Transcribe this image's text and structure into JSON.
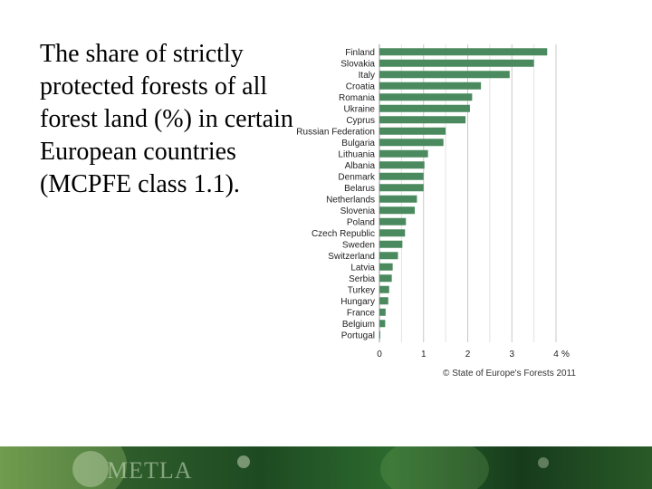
{
  "slide": {
    "text": "The share of strictly protected forests of all forest land (%) in certain European countries (MCPFE class 1.1)."
  },
  "chart_data": {
    "type": "bar",
    "orientation": "horizontal",
    "categories": [
      "Finland",
      "Slovakia",
      "Italy",
      "Croatia",
      "Romania",
      "Ukraine",
      "Cyprus",
      "Russian Federation",
      "Bulgaria",
      "Lithuania",
      "Albania",
      "Denmark",
      "Belarus",
      "Netherlands",
      "Slovenia",
      "Poland",
      "Czech Republic",
      "Sweden",
      "Switzerland",
      "Latvia",
      "Serbia",
      "Turkey",
      "Hungary",
      "France",
      "Belgium",
      "Portugal"
    ],
    "values": [
      3.8,
      3.5,
      2.95,
      2.3,
      2.1,
      2.05,
      1.95,
      1.5,
      1.45,
      1.1,
      1.02,
      1.0,
      1.0,
      0.85,
      0.8,
      0.6,
      0.58,
      0.52,
      0.42,
      0.3,
      0.28,
      0.22,
      0.2,
      0.14,
      0.13,
      0.02
    ],
    "xlim": [
      0,
      4
    ],
    "xticks": [
      "0",
      "1",
      "2",
      "3",
      "4"
    ],
    "xunit": "%",
    "grid": true,
    "bar_color": "#4a8a5e",
    "credit": "© State of Europe's Forests 2011"
  },
  "footer": {
    "logo_text": "METLA"
  }
}
